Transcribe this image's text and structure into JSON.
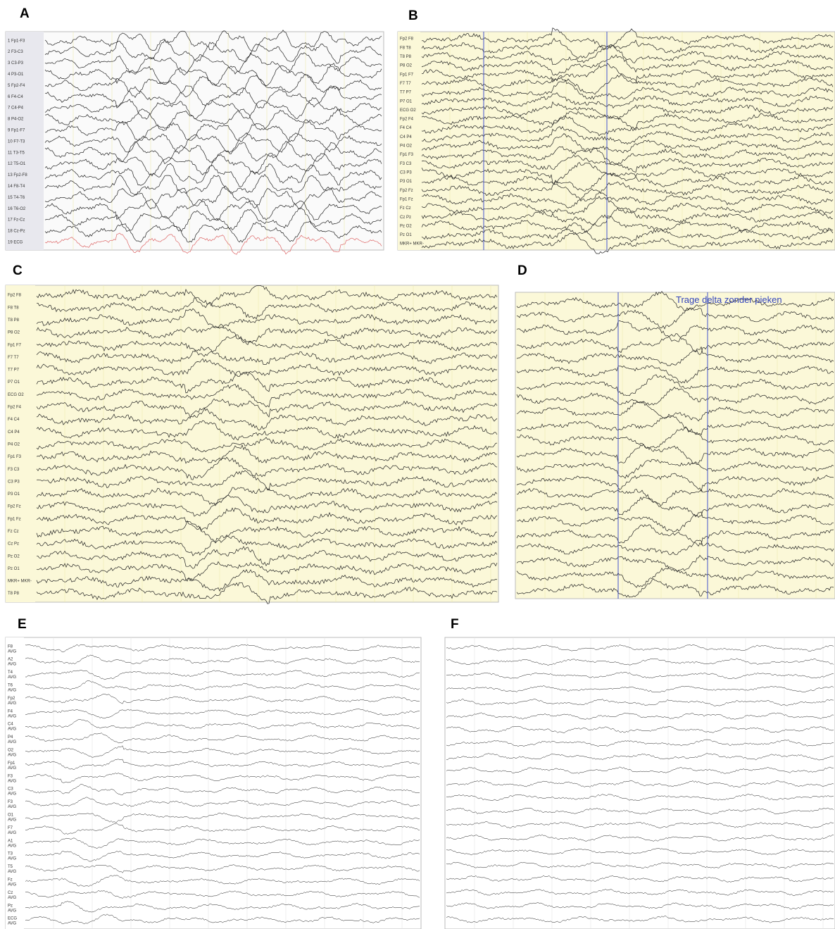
{
  "panels": [
    {
      "label": "A",
      "channels": [
        "1 Fp1-F3",
        "2 F3-C3",
        "3 C3-P3",
        "4 P3-O1",
        "5 Fp2-F4",
        "6 F4-C4",
        "7 C4-P4",
        "8 P4-O2",
        "9 Fp1-F7",
        "10 F7-T3",
        "11 T3-T5",
        "12 T5-O1",
        "13 Fp2-F8",
        "14 F8-T4",
        "15 T4-T6",
        "16 T6-O2",
        "17 Fz-Cz",
        "18 Cz-Pz",
        "19 ECG"
      ]
    },
    {
      "label": "B",
      "channels": [
        "Fp2 F8",
        "F8 T8",
        "T8 P8",
        "P8 O2",
        "Fp1 F7",
        "F7 T7",
        "T7 P7",
        "P7 O1",
        "ECG O2",
        "Fp2 F4",
        "F4 C4",
        "C4 P4",
        "P4 O2",
        "Fp1 F3",
        "F3 C3",
        "C3 P3",
        "P3 O1",
        "Fp2 Fz",
        "Fp1 Fz",
        "Fz Cz",
        "Cz Pz",
        "Pz O2",
        "Pz O1",
        "MKR+ MKR-"
      ]
    },
    {
      "label": "C",
      "channels": [
        "Fp2 F8",
        "F8 T8",
        "T8 P8",
        "P8 O2",
        "Fp1 F7",
        "F7 T7",
        "T7 P7",
        "P7 O1",
        "ECG O2",
        "Fp2 F4",
        "F4 C4",
        "C4 P4",
        "P4 O2",
        "Fp1 F3",
        "F3 C3",
        "C3 P3",
        "P3 O1",
        "Fp2 Fz",
        "Fp1 Fz",
        "Fz Cz",
        "Cz Pz",
        "Pz O2",
        "Pz O1",
        "MKR+ MKR-",
        "T8 P8"
      ]
    },
    {
      "label": "D",
      "annotation": "Trage delta zonder pieken"
    },
    {
      "label": "E",
      "reference": "AVG",
      "channels": [
        "F8",
        "A2",
        "T4",
        "T6",
        "Fp2",
        "F4",
        "C4",
        "P4",
        "O2",
        "Fp1",
        "F3",
        "C3",
        "F3",
        "O1",
        "F7",
        "A1",
        "T3",
        "T5",
        "Fz",
        "Cz",
        "Pz",
        "ECG"
      ]
    },
    {
      "label": "F"
    }
  ]
}
